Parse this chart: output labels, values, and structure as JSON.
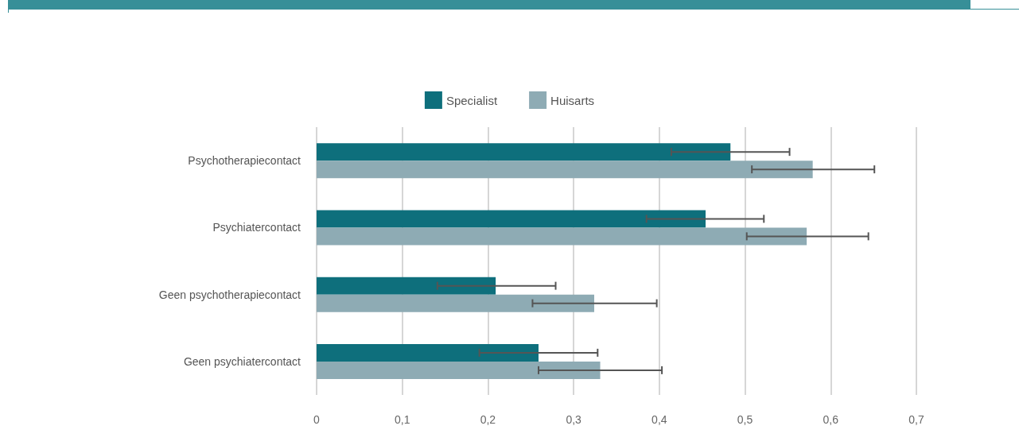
{
  "chart_data": {
    "type": "bar",
    "orientation": "horizontal",
    "categories": [
      "Psychotherapiecontact",
      "Psychiatercontact",
      "Geen psychotherapiecontact",
      "Geen psychiatercontact"
    ],
    "series": [
      {
        "name": "Specialist",
        "color": "#0e6f7c",
        "values": [
          0.483,
          0.454,
          0.209,
          0.259
        ],
        "errors": [
          [
            0.414,
            0.552
          ],
          [
            0.385,
            0.522
          ],
          [
            0.141,
            0.279
          ],
          [
            0.19,
            0.328
          ]
        ]
      },
      {
        "name": "Huisarts",
        "color": "#8eabb4",
        "values": [
          0.579,
          0.572,
          0.324,
          0.331
        ],
        "errors": [
          [
            0.508,
            0.651
          ],
          [
            0.502,
            0.644
          ],
          [
            0.252,
            0.397
          ],
          [
            0.259,
            0.403
          ]
        ]
      }
    ],
    "xlim": [
      0,
      0.7
    ],
    "xticks": [
      0,
      {
        "value": 0.1,
        "label": "0,1"
      },
      {
        "value": 0.2,
        "label": "0,2"
      },
      {
        "value": 0.3,
        "label": "0,3"
      },
      {
        "value": 0.4,
        "label": "0,4"
      },
      {
        "value": 0.5,
        "label": "0,5"
      },
      {
        "value": 0.6,
        "label": "0,6"
      },
      {
        "value": 0.7,
        "label": "0,7"
      }
    ],
    "grid": "x",
    "legend": "top"
  }
}
